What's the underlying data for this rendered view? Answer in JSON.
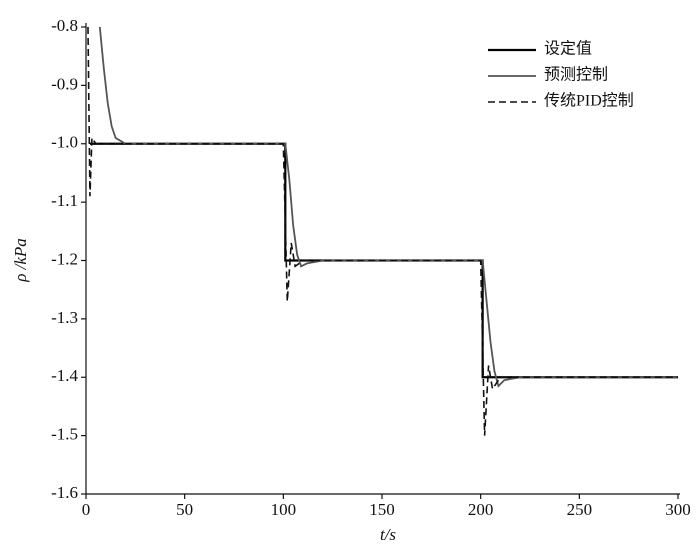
{
  "chart_data": {
    "type": "line",
    "x_label": "t/s",
    "y_label": "ρ /kPa",
    "xlim": [
      0,
      300
    ],
    "xticks": [
      0,
      50,
      100,
      150,
      200,
      250,
      300
    ],
    "ylim": [
      -1.6,
      -0.8
    ],
    "yticks": [
      -1.6,
      -1.5,
      -1.4,
      -1.3,
      -1.2,
      -1.1,
      {
        "value": -1,
        "label": "-1.0"
      },
      -0.9,
      -0.8
    ],
    "legend": "upper right",
    "series": [
      {
        "name": "设定值",
        "color": "#000000",
        "style": "solid",
        "width": 2.2,
        "x": [
          2,
          101,
          101,
          201,
          201,
          300
        ],
        "values": [
          -1.0,
          -1.0,
          -1.2,
          -1.2,
          -1.4,
          -1.4
        ]
      },
      {
        "name": "预测控制",
        "color": "#555555",
        "style": "solid",
        "width": 1.8,
        "x": [
          7,
          9,
          11,
          13,
          15,
          20,
          101,
          103,
          105,
          107,
          109,
          112,
          120,
          201,
          203,
          205,
          207,
          209,
          212,
          220,
          300
        ],
        "values": [
          -0.8,
          -0.87,
          -0.93,
          -0.97,
          -0.99,
          -1.0,
          -1.0,
          -1.06,
          -1.14,
          -1.19,
          -1.21,
          -1.205,
          -1.2,
          -1.2,
          -1.27,
          -1.34,
          -1.39,
          -1.415,
          -1.405,
          -1.4,
          -1.4
        ]
      },
      {
        "name": "传统PID控制",
        "color": "#111111",
        "style": "dashed",
        "width": 1.6,
        "x": [
          1,
          2,
          3,
          5,
          100,
          102,
          104,
          106,
          110,
          200,
          202,
          204,
          206,
          210,
          300
        ],
        "values": [
          -0.8,
          -1.09,
          -0.99,
          -1.0,
          -1.0,
          -1.27,
          -1.17,
          -1.21,
          -1.2,
          -1.2,
          -1.5,
          -1.38,
          -1.42,
          -1.4,
          -1.4
        ]
      }
    ]
  }
}
